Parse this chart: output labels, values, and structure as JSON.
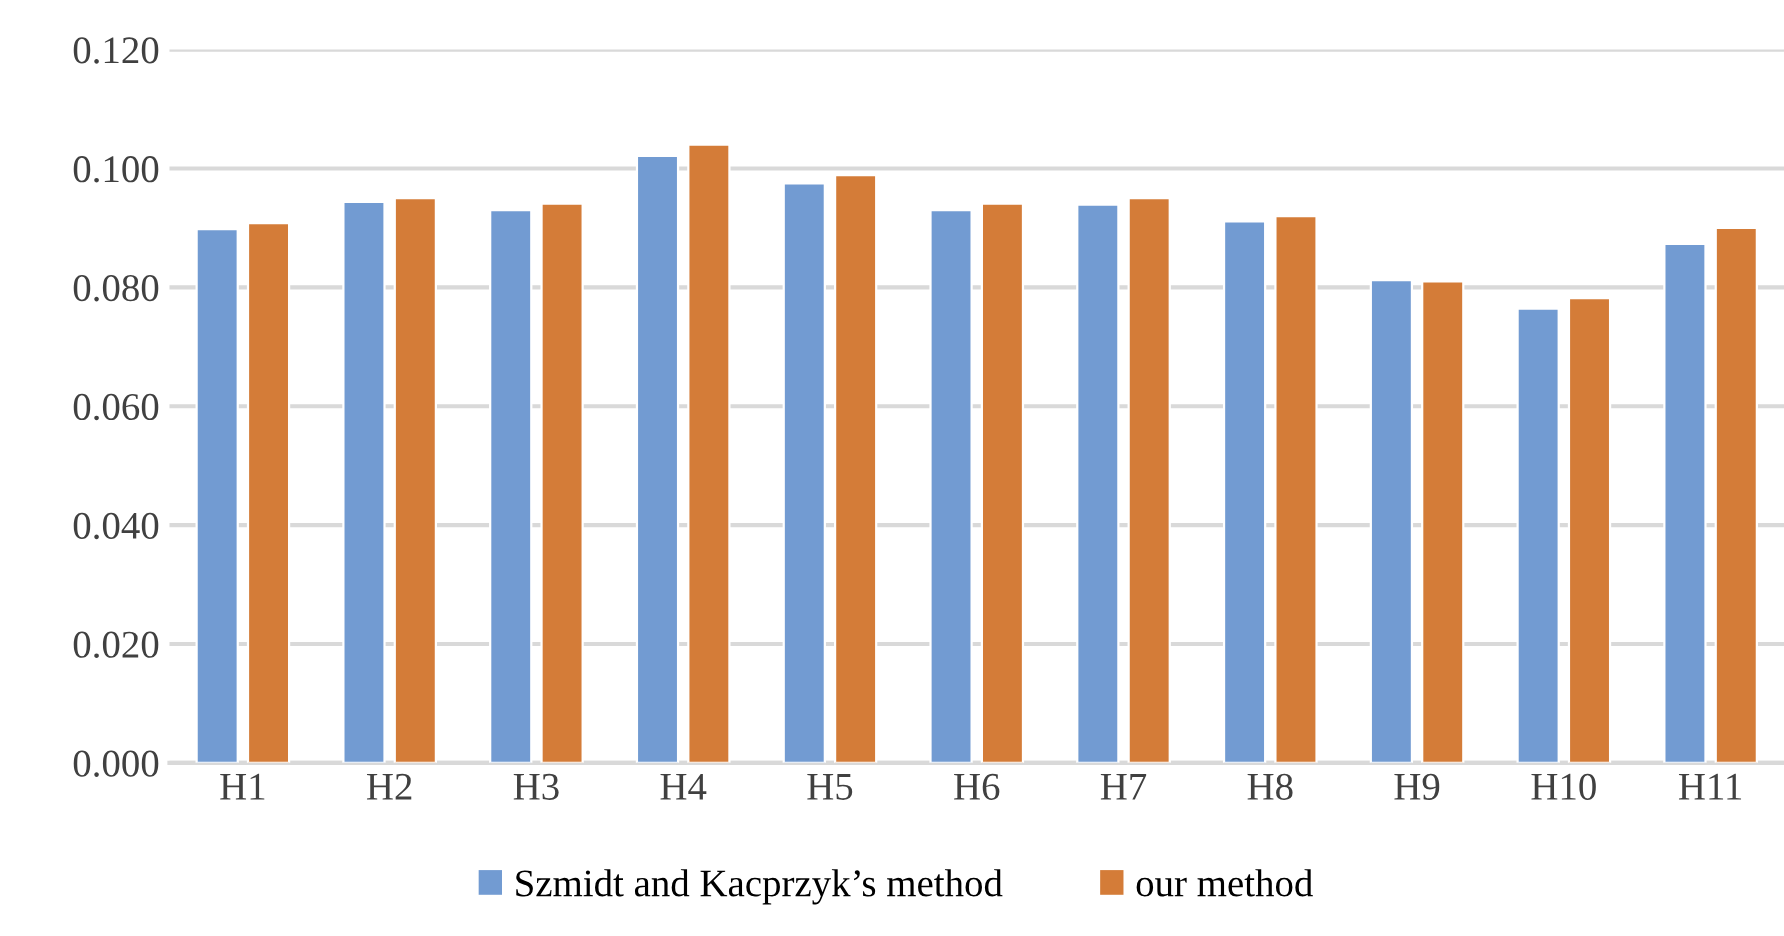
{
  "chart_data": {
    "type": "bar",
    "categories": [
      "H1",
      "H2",
      "H3",
      "H4",
      "H5",
      "H6",
      "H7",
      "H8",
      "H9",
      "H10",
      "H11"
    ],
    "series": [
      {
        "name": "Szmidt and Kacprzyk’s method",
        "color": "#729bd2",
        "values": [
          0.0898,
          0.0944,
          0.093,
          0.1021,
          0.0975,
          0.093,
          0.0939,
          0.0911,
          0.0812,
          0.0764,
          0.0873
        ]
      },
      {
        "name": "our method",
        "color": "#d47c38",
        "values": [
          0.0908,
          0.095,
          0.0941,
          0.104,
          0.0989,
          0.0941,
          0.095,
          0.092,
          0.081,
          0.0782,
          0.09
        ]
      }
    ],
    "ylim": [
      0,
      0.12
    ],
    "yticks": [
      {
        "value": 0,
        "label": "0.000"
      },
      {
        "value": 0.02,
        "label": "0.020"
      },
      {
        "value": 0.04,
        "label": "0.040"
      },
      {
        "value": 0.06,
        "label": "0.060"
      },
      {
        "value": 0.08,
        "label": "0.080"
      },
      {
        "value": 0.1,
        "label": "0.100"
      },
      {
        "value": 0.12,
        "label": "0.120"
      }
    ],
    "grid": "y",
    "legend": "bottom"
  }
}
